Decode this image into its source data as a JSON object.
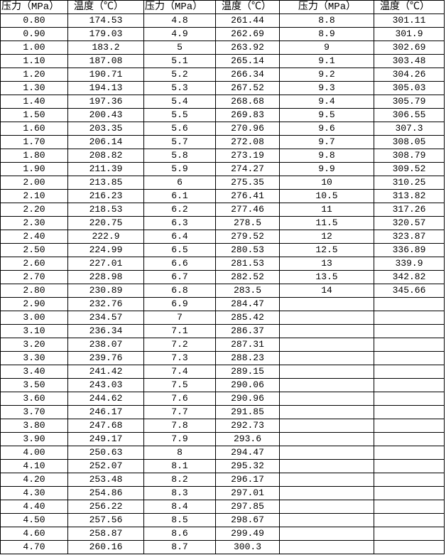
{
  "headers": [
    "压力（MPa）",
    "温度（℃）",
    "压力（MPa）",
    "温度（℃）",
    "压力（MPa）",
    "温度（℃）"
  ],
  "rows": [
    [
      "0.80",
      "174.53",
      "4.8",
      "261.44",
      "8.8",
      "301.11"
    ],
    [
      "0.90",
      "179.03",
      "4.9",
      "262.69",
      "8.9",
      "301.9"
    ],
    [
      "1.00",
      "183.2",
      "5",
      "263.92",
      "9",
      "302.69"
    ],
    [
      "1.10",
      "187.08",
      "5.1",
      "265.14",
      "9.1",
      "303.48"
    ],
    [
      "1.20",
      "190.71",
      "5.2",
      "266.34",
      "9.2",
      "304.26"
    ],
    [
      "1.30",
      "194.13",
      "5.3",
      "267.52",
      "9.3",
      "305.03"
    ],
    [
      "1.40",
      "197.36",
      "5.4",
      "268.68",
      "9.4",
      "305.79"
    ],
    [
      "1.50",
      "200.43",
      "5.5",
      "269.83",
      "9.5",
      "306.55"
    ],
    [
      "1.60",
      "203.35",
      "5.6",
      "270.96",
      "9.6",
      "307.3"
    ],
    [
      "1.70",
      "206.14",
      "5.7",
      "272.08",
      "9.7",
      "308.05"
    ],
    [
      "1.80",
      "208.82",
      "5.8",
      "273.19",
      "9.8",
      "308.79"
    ],
    [
      "1.90",
      "211.39",
      "5.9",
      "274.27",
      "9.9",
      "309.52"
    ],
    [
      "2.00",
      "213.85",
      "6",
      "275.35",
      "10",
      "310.25"
    ],
    [
      "2.10",
      "216.23",
      "6.1",
      "276.41",
      "10.5",
      "313.82"
    ],
    [
      "2.20",
      "218.53",
      "6.2",
      "277.46",
      "11",
      "317.26"
    ],
    [
      "2.30",
      "220.75",
      "6.3",
      "278.5",
      "11.5",
      "320.57"
    ],
    [
      "2.40",
      "222.9",
      "6.4",
      "279.52",
      "12",
      "323.87"
    ],
    [
      "2.50",
      "224.99",
      "6.5",
      "280.53",
      "12.5",
      "336.89"
    ],
    [
      "2.60",
      "227.01",
      "6.6",
      "281.53",
      "13",
      "339.9"
    ],
    [
      "2.70",
      "228.98",
      "6.7",
      "282.52",
      "13.5",
      "342.82"
    ],
    [
      "2.80",
      "230.89",
      "6.8",
      "283.5",
      "14",
      "345.66"
    ],
    [
      "2.90",
      "232.76",
      "6.9",
      "284.47",
      "",
      ""
    ],
    [
      "3.00",
      "234.57",
      "7",
      "285.42",
      "",
      ""
    ],
    [
      "3.10",
      "236.34",
      "7.1",
      "286.37",
      "",
      ""
    ],
    [
      "3.20",
      "238.07",
      "7.2",
      "287.31",
      "",
      ""
    ],
    [
      "3.30",
      "239.76",
      "7.3",
      "288.23",
      "",
      ""
    ],
    [
      "3.40",
      "241.42",
      "7.4",
      "289.15",
      "",
      ""
    ],
    [
      "3.50",
      "243.03",
      "7.5",
      "290.06",
      "",
      ""
    ],
    [
      "3.60",
      "244.62",
      "7.6",
      "290.96",
      "",
      ""
    ],
    [
      "3.70",
      "246.17",
      "7.7",
      "291.85",
      "",
      ""
    ],
    [
      "3.80",
      "247.68",
      "7.8",
      "292.73",
      "",
      ""
    ],
    [
      "3.90",
      "249.17",
      "7.9",
      "293.6",
      "",
      ""
    ],
    [
      "4.00",
      "250.63",
      "8",
      "294.47",
      "",
      ""
    ],
    [
      "4.10",
      "252.07",
      "8.1",
      "295.32",
      "",
      ""
    ],
    [
      "4.20",
      "253.48",
      "8.2",
      "296.17",
      "",
      ""
    ],
    [
      "4.30",
      "254.86",
      "8.3",
      "297.01",
      "",
      ""
    ],
    [
      "4.40",
      "256.22",
      "8.4",
      "297.85",
      "",
      ""
    ],
    [
      "4.50",
      "257.56",
      "8.5",
      "298.67",
      "",
      ""
    ],
    [
      "4.60",
      "258.87",
      "8.6",
      "299.49",
      "",
      ""
    ],
    [
      "4.70",
      "260.16",
      "8.7",
      "300.3",
      "",
      ""
    ]
  ]
}
